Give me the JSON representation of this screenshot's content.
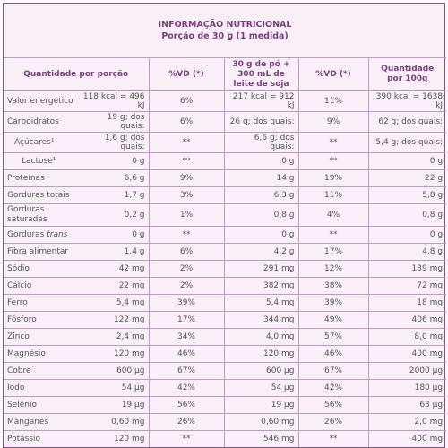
{
  "header": {
    "title": "INFORMAÇÃO NUTRICIONAL",
    "subtitle": "Porção de 30 g (1 medida)"
  },
  "table": {
    "columns": [
      "Quantidade por porção",
      "%VD (*)",
      "30 g de pó + 300 mL de leite de soja",
      "%VD (*)",
      "Quantidade por 100g"
    ],
    "rows": [
      {
        "label": "Valor energético",
        "cells": [
          "118 kcal = 496 kJ",
          "6%",
          "217 kcal = 912 kJ",
          "11%",
          "390 kcal = 1638 kJ"
        ]
      },
      {
        "label": "Carboidratos",
        "cells": [
          "19 g; dos quais:",
          "6%",
          "26 g; dos quais:",
          "9%",
          "62 g; dos quais:"
        ]
      },
      {
        "label": "Açúcares¹",
        "indent": 1,
        "cells": [
          "1,6 g; dos quais:",
          "**",
          "6,6 g; dos quais:",
          "**",
          "5,4 g; dos quais:"
        ]
      },
      {
        "label": "Lactose¹",
        "indent": 2,
        "cells": [
          "0 g",
          "**",
          "0 g",
          "**",
          "0 g"
        ]
      },
      {
        "label": "Proteínas",
        "cells": [
          "6,6 g",
          "9%",
          "14 g",
          "19%",
          "22 g"
        ]
      },
      {
        "label": "Gorduras totais",
        "cells": [
          "1,7 g",
          "3%",
          "6,3 g",
          "11%",
          "5,8 g"
        ]
      },
      {
        "label": "Gorduras saturadas",
        "cells": [
          "0,2 g",
          "1%",
          "0,8 g",
          "4%",
          "0,8 g"
        ]
      },
      {
        "label": "Gorduras",
        "label_italic": "trans",
        "cells": [
          "0 g",
          "**",
          "0 g",
          "**",
          "0 g"
        ]
      },
      {
        "label": "Fibra alimentar",
        "cells": [
          "1,4 g",
          "6%",
          "4,2 g",
          "17%",
          "4,8 g"
        ]
      },
      {
        "label": "Sódio",
        "cells": [
          "42 mg",
          "2%",
          "291 mg",
          "12%",
          "139 mg"
        ]
      },
      {
        "label": "Cálcio",
        "cells": [
          "22 mg",
          "2%",
          "382 mg",
          "38%",
          "72 mg"
        ]
      },
      {
        "label": "Ferro",
        "cells": [
          "5,4 mg",
          "39%",
          "5,4 mg",
          "39%",
          "18 mg"
        ]
      },
      {
        "label": "Fósforo",
        "cells": [
          "122 mg",
          "17%",
          "344 mg",
          "49%",
          "406 mg"
        ]
      },
      {
        "label": "Zinco",
        "cells": [
          "2,4 mg",
          "34%",
          "4,0 mg",
          "57%",
          "8,0 mg"
        ]
      },
      {
        "label": "Magnésio",
        "cells": [
          "120 mg",
          "46%",
          "120 mg",
          "46%",
          "400 mg"
        ]
      },
      {
        "label": "Cobre",
        "cells": [
          "600 µg",
          "67%",
          "600 µg",
          "67%",
          "2000 µg"
        ]
      },
      {
        "label": "Iodo",
        "cells": [
          "54 µg",
          "42%",
          "54 µg",
          "42%",
          "180 µg"
        ]
      },
      {
        "label": "Selênio",
        "cells": [
          "19 µg",
          "56%",
          "19 µg",
          "56%",
          "63 µg"
        ]
      },
      {
        "label": "Manganês",
        "cells": [
          "0,60 mg",
          "26%",
          "0,60 mg",
          "26%",
          "2,0 mg"
        ]
      },
      {
        "label": "Potássio",
        "cells": [
          "120 mg",
          "**",
          "546 mg",
          "**",
          "400 mg"
        ]
      }
    ]
  }
}
